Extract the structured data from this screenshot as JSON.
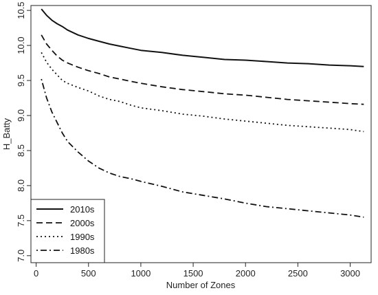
{
  "chart_data": {
    "type": "line",
    "title": "",
    "xlabel": "Number of Zones",
    "ylabel": "H_Batty",
    "xlim": [
      -50,
      3200
    ],
    "ylim": [
      6.9,
      10.57
    ],
    "x_ticks": [
      0,
      500,
      1000,
      1500,
      2000,
      2500,
      3000
    ],
    "y_ticks": [
      7.0,
      7.5,
      8.0,
      8.5,
      9.0,
      9.5,
      10.0,
      10.5
    ],
    "y_tick_labels": [
      "7.0",
      "7.5",
      "8.0",
      "8.5",
      "9.0",
      "9.5",
      "10.0",
      "10.5"
    ],
    "grid": false,
    "legend_position": "bottom-left",
    "series": [
      {
        "name": "2010s",
        "line_style": "solid",
        "x": [
          50,
          100,
          150,
          200,
          250,
          300,
          400,
          500,
          600,
          700,
          800,
          900,
          1000,
          1200,
          1400,
          1600,
          1800,
          2000,
          2200,
          2400,
          2600,
          2800,
          3000,
          3130
        ],
        "y": [
          10.52,
          10.43,
          10.36,
          10.31,
          10.27,
          10.22,
          10.15,
          10.1,
          10.06,
          10.02,
          9.99,
          9.96,
          9.93,
          9.9,
          9.86,
          9.83,
          9.8,
          9.79,
          9.77,
          9.75,
          9.74,
          9.72,
          9.71,
          9.7
        ]
      },
      {
        "name": "2000s",
        "line_style": "dashed",
        "x": [
          50,
          100,
          150,
          200,
          250,
          300,
          400,
          500,
          600,
          700,
          800,
          900,
          1000,
          1200,
          1400,
          1600,
          1800,
          2000,
          2200,
          2400,
          2600,
          2800,
          3000,
          3130
        ],
        "y": [
          10.15,
          10.02,
          9.93,
          9.85,
          9.79,
          9.75,
          9.69,
          9.64,
          9.6,
          9.55,
          9.52,
          9.49,
          9.46,
          9.41,
          9.37,
          9.34,
          9.31,
          9.29,
          9.26,
          9.23,
          9.21,
          9.19,
          9.17,
          9.16
        ]
      },
      {
        "name": "1990s",
        "line_style": "dotted",
        "x": [
          50,
          100,
          150,
          200,
          250,
          300,
          400,
          500,
          600,
          700,
          800,
          900,
          1000,
          1200,
          1400,
          1600,
          1800,
          2000,
          2200,
          2400,
          2600,
          2800,
          3000,
          3130
        ],
        "y": [
          9.9,
          9.76,
          9.66,
          9.58,
          9.5,
          9.46,
          9.4,
          9.35,
          9.28,
          9.23,
          9.2,
          9.15,
          9.11,
          9.07,
          9.02,
          8.99,
          8.95,
          8.92,
          8.89,
          8.86,
          8.84,
          8.82,
          8.8,
          8.77
        ]
      },
      {
        "name": "1980s",
        "line_style": "dotdash",
        "x": [
          50,
          100,
          150,
          200,
          250,
          300,
          400,
          500,
          600,
          700,
          800,
          900,
          1000,
          1200,
          1400,
          1600,
          1800,
          2000,
          2200,
          2400,
          2600,
          2800,
          3000,
          3130
        ],
        "y": [
          9.52,
          9.25,
          9.05,
          8.9,
          8.75,
          8.63,
          8.48,
          8.35,
          8.25,
          8.18,
          8.13,
          8.1,
          8.06,
          7.99,
          7.91,
          7.86,
          7.81,
          7.75,
          7.7,
          7.67,
          7.64,
          7.61,
          7.58,
          7.55
        ]
      }
    ]
  }
}
